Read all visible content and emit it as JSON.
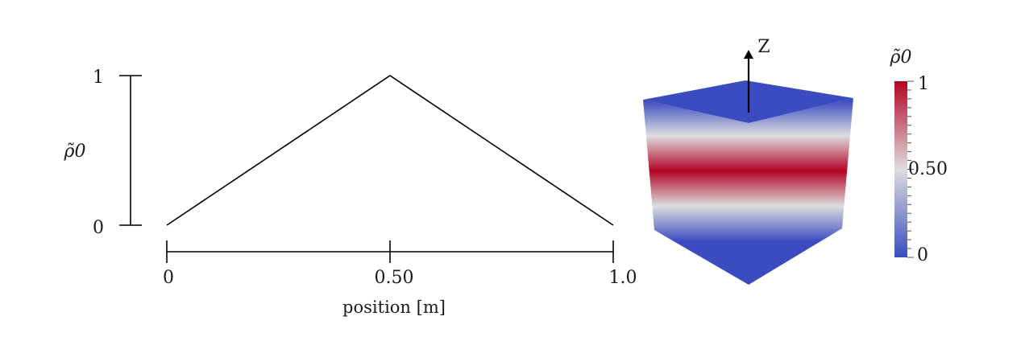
{
  "chart_data": [
    {
      "type": "line",
      "xlabel": "position [m]",
      "ylabel": "ρ̃0",
      "xlim": [
        0,
        1.0
      ],
      "ylim": [
        0,
        1
      ],
      "x_ticks": [
        0,
        0.5,
        1.0
      ],
      "x_tick_labels": [
        "0",
        "0.50",
        "1.0"
      ],
      "y_ticks": [
        0,
        1
      ],
      "y_tick_labels": [
        "0",
        "1"
      ],
      "grid": false,
      "series": [
        {
          "x": [
            0,
            0.5,
            1.0
          ],
          "y": [
            0,
            1,
            0
          ]
        }
      ]
    },
    {
      "type": "heatmap",
      "axis_label": "Z",
      "colorbar": {
        "title": "ρ̃0",
        "range": [
          0,
          1
        ],
        "tick_labels": [
          "1",
          "0.50",
          "0"
        ],
        "colors": {
          "low": "#3b4cc0",
          "mid": "#dddddd",
          "high": "#b40426"
        }
      },
      "z_profile": {
        "z_relative": [
          0,
          0.5,
          1.0
        ],
        "value": [
          0,
          1,
          0
        ]
      }
    }
  ]
}
